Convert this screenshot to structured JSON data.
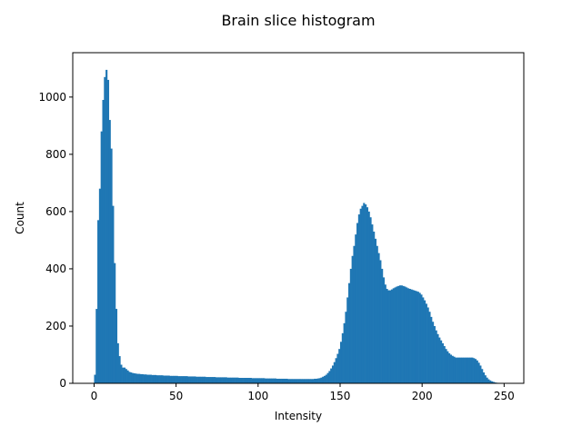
{
  "chart_data": {
    "type": "bar",
    "title": "Brain slice histogram",
    "xlabel": "Intensity",
    "ylabel": "Count",
    "xlim": [
      -13,
      262
    ],
    "ylim": [
      0,
      1155
    ],
    "xticks": [
      0,
      50,
      100,
      150,
      200,
      250
    ],
    "yticks": [
      0,
      200,
      400,
      600,
      800,
      1000
    ],
    "grid": false,
    "bar_color": "#1f77b4",
    "bin_width": 1,
    "x_start": 0,
    "values": [
      30,
      260,
      570,
      680,
      880,
      990,
      1070,
      1095,
      1060,
      920,
      820,
      620,
      420,
      260,
      140,
      95,
      65,
      55,
      55,
      50,
      45,
      40,
      38,
      36,
      35,
      34,
      33,
      33,
      32,
      32,
      31,
      31,
      30,
      30,
      30,
      29,
      29,
      29,
      28,
      28,
      28,
      28,
      27,
      27,
      27,
      27,
      26,
      26,
      26,
      26,
      26,
      25,
      25,
      25,
      25,
      25,
      25,
      24,
      24,
      24,
      24,
      24,
      23,
      23,
      23,
      23,
      23,
      23,
      22,
      22,
      22,
      22,
      22,
      22,
      21,
      21,
      21,
      21,
      21,
      21,
      21,
      20,
      20,
      20,
      20,
      20,
      20,
      20,
      19,
      19,
      19,
      19,
      19,
      19,
      19,
      19,
      18,
      18,
      18,
      18,
      18,
      18,
      18,
      18,
      17,
      17,
      17,
      17,
      17,
      17,
      17,
      16,
      16,
      16,
      16,
      16,
      16,
      16,
      15,
      15,
      15,
      15,
      15,
      15,
      15,
      15,
      15,
      15,
      15,
      15,
      15,
      15,
      15,
      15,
      16,
      16,
      17,
      18,
      20,
      23,
      26,
      30,
      36,
      43,
      52,
      62,
      74,
      88,
      103,
      120,
      145,
      175,
      210,
      250,
      300,
      350,
      400,
      445,
      480,
      520,
      560,
      590,
      610,
      620,
      630,
      625,
      615,
      600,
      580,
      555,
      530,
      505,
      480,
      455,
      430,
      400,
      370,
      345,
      330,
      325,
      325,
      328,
      332,
      335,
      338,
      340,
      342,
      342,
      340,
      338,
      335,
      332,
      330,
      328,
      326,
      324,
      322,
      320,
      316,
      310,
      300,
      290,
      278,
      265,
      250,
      232,
      215,
      200,
      185,
      172,
      160,
      150,
      140,
      130,
      120,
      112,
      105,
      100,
      96,
      93,
      90,
      90,
      90,
      90,
      90,
      90,
      90,
      90,
      90,
      90,
      90,
      88,
      85,
      80,
      72,
      62,
      50,
      38,
      28,
      20,
      14,
      10,
      7,
      5,
      3,
      2,
      1,
      1,
      1,
      0
    ]
  }
}
